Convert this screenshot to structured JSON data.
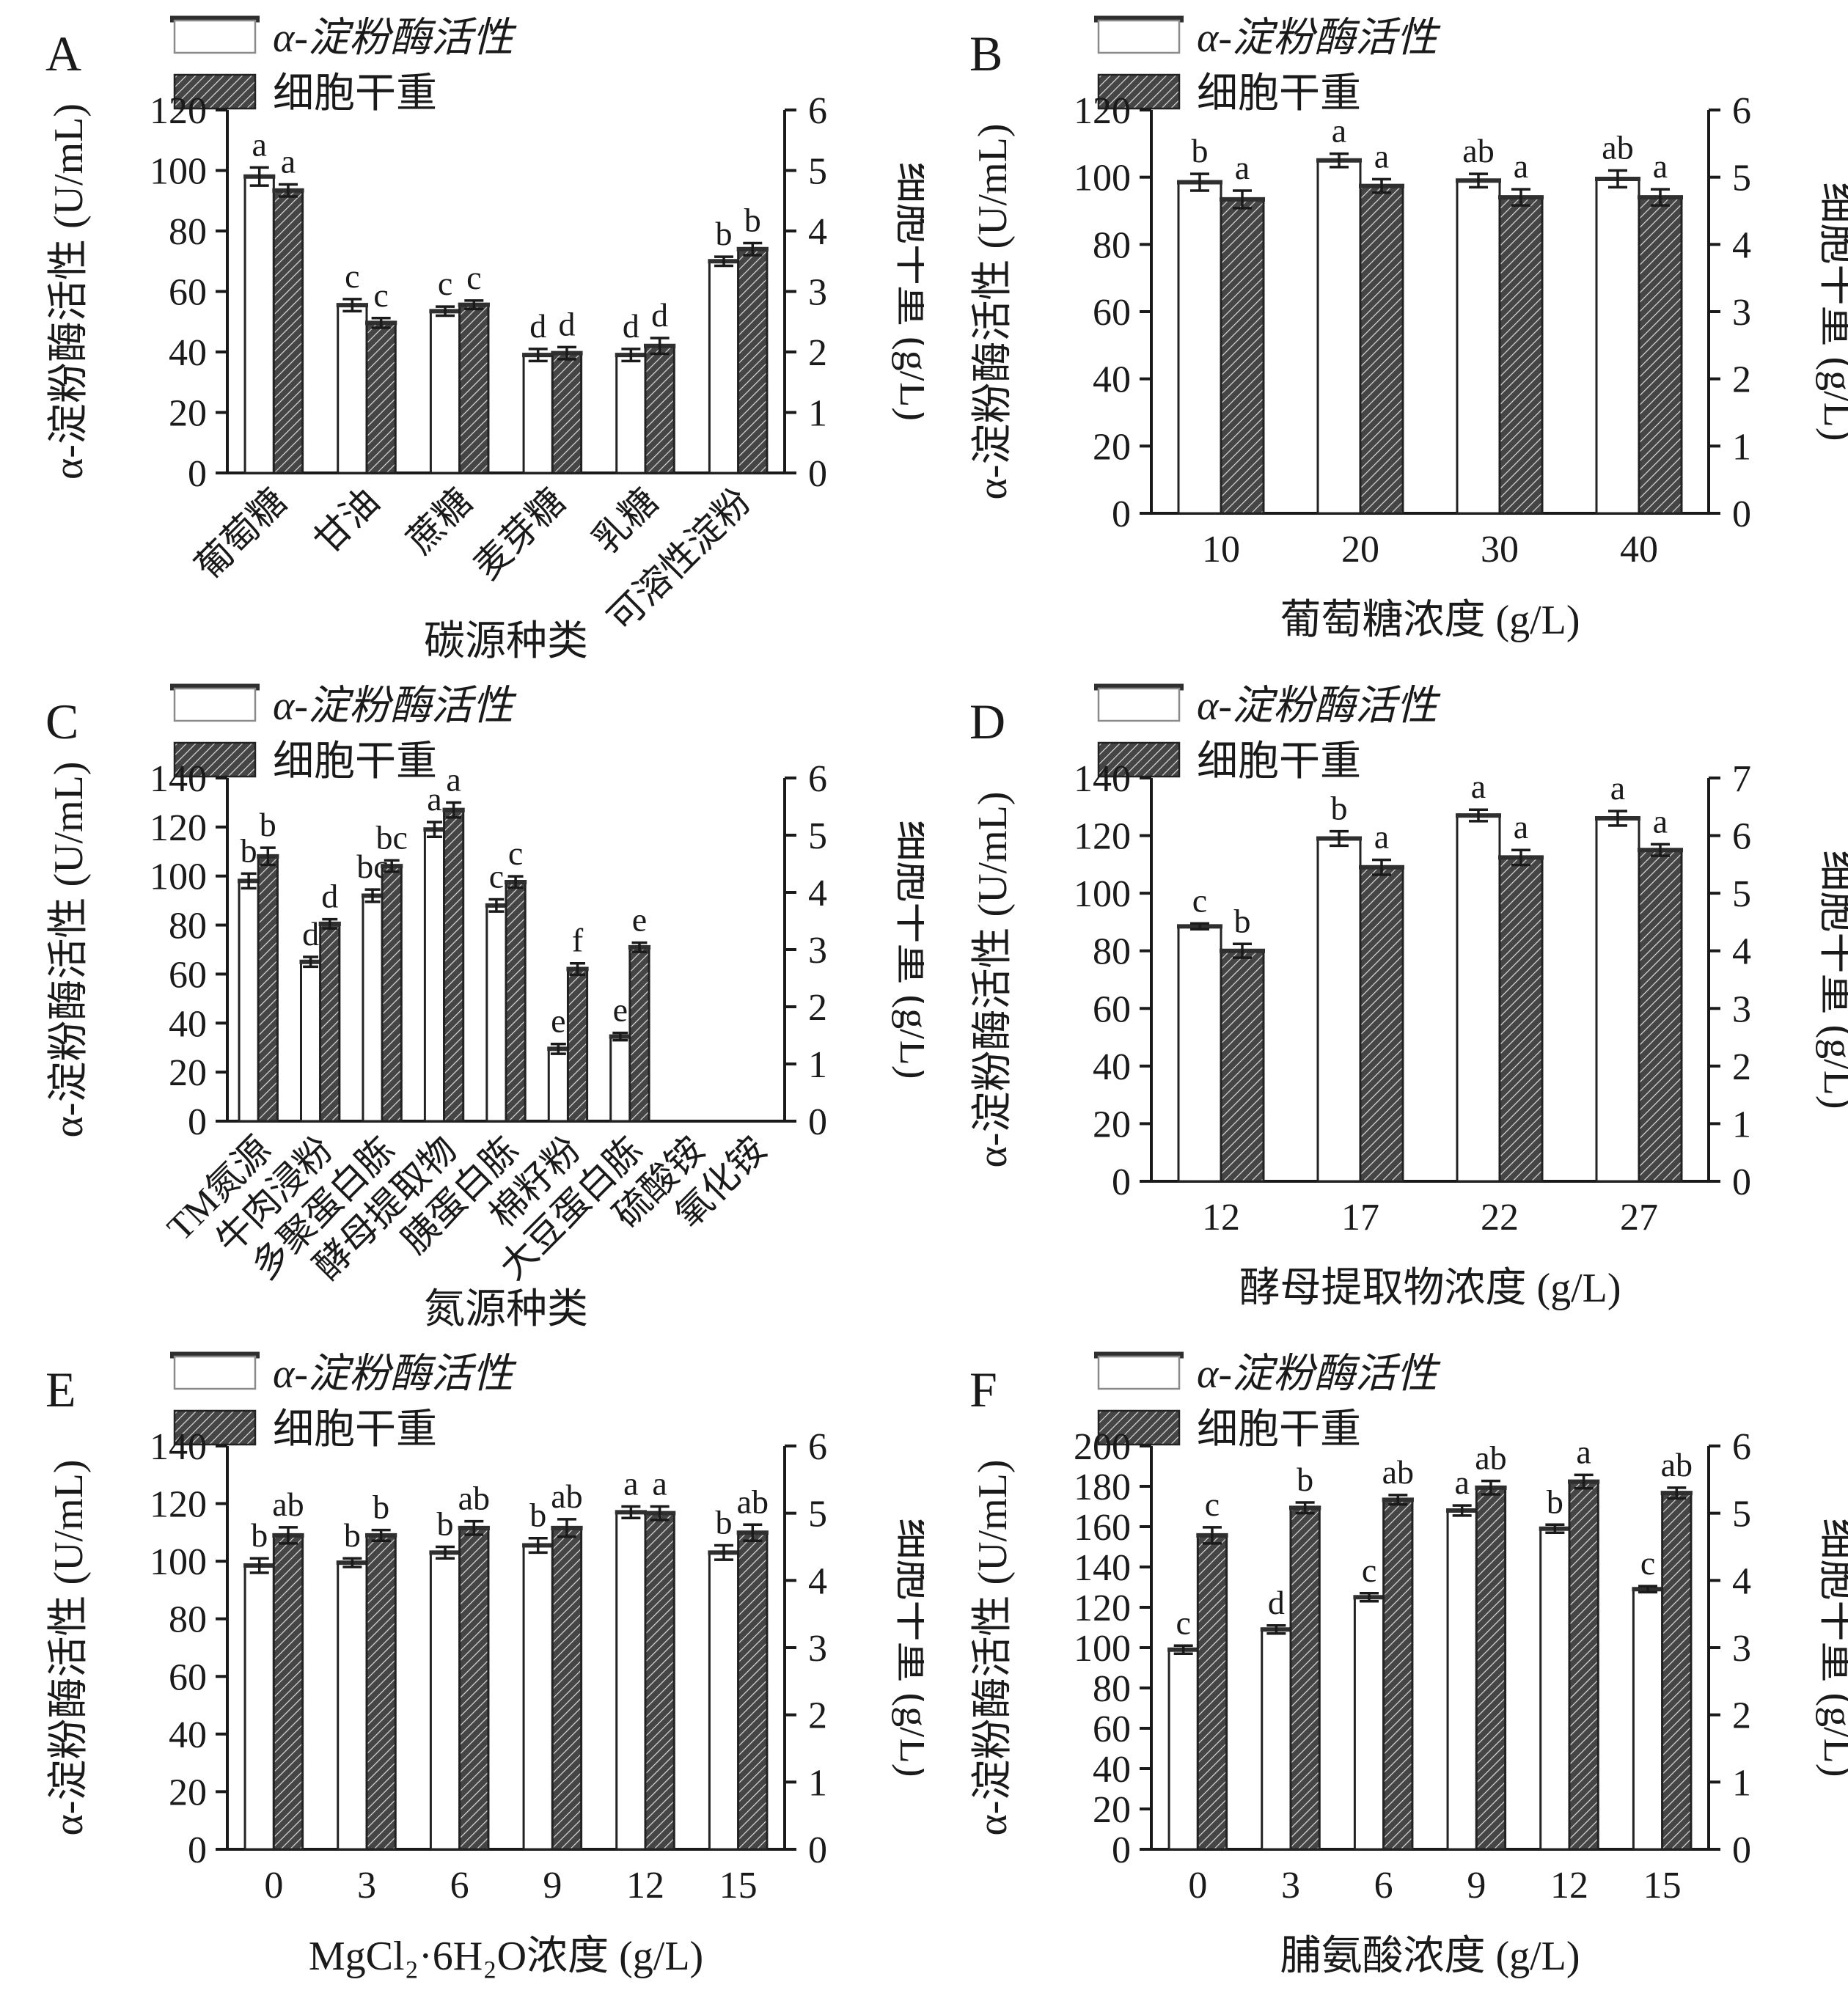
{
  "figure": {
    "legend": {
      "activity": "α-淀粉酶活性",
      "dry_weight": "细胞干重"
    },
    "colors": {
      "bar_fill": "#ffffff",
      "bar_stroke": "#222222",
      "bar_top": "#2f2f2f",
      "hatch_bg": "#454545",
      "hatch_line": "#dcdcdc",
      "axis": "#1a1a1a",
      "text": "#1a1a1a"
    }
  },
  "chart_data": [
    {
      "id": "A",
      "type": "bar",
      "left_axis": {
        "label": "α-淀粉酶活性 (U/mL)",
        "min": 0,
        "max": 120,
        "step": 20
      },
      "right_axis": {
        "label": "细胞干重 (g/L)",
        "min": 0,
        "max": 6,
        "step": 1
      },
      "x_axis": {
        "label": "碳源种类",
        "categories": [
          "葡萄糖",
          "甘油",
          "蔗糖",
          "麦芽糖",
          "乳糖",
          "可溶性淀粉"
        ],
        "rotated": true
      },
      "series": [
        {
          "name": "α-淀粉酶活性",
          "axis": "left",
          "values": [
            98,
            55.5,
            53.5,
            39,
            39,
            70
          ],
          "errors": [
            3,
            2,
            1.5,
            2,
            2,
            1.5
          ],
          "letters": [
            "a",
            "c",
            "c",
            "d",
            "d",
            "b"
          ]
        },
        {
          "name": "细胞干重",
          "axis": "right",
          "values": [
            4.67,
            2.48,
            2.78,
            1.98,
            2.1,
            3.7
          ],
          "errors": [
            0.1,
            0.08,
            0.07,
            0.1,
            0.13,
            0.1
          ],
          "letters": [
            "a",
            "c",
            "c",
            "d",
            "d",
            "b"
          ]
        }
      ]
    },
    {
      "id": "B",
      "type": "bar",
      "left_axis": {
        "label": "α-淀粉酶活性 (U/mL)",
        "min": 0,
        "max": 120,
        "step": 20
      },
      "right_axis": {
        "label": "细胞干重 (g/L)",
        "min": 0,
        "max": 6,
        "step": 1
      },
      "x_axis": {
        "label": "葡萄糖浓度 (g/L)",
        "categories": [
          "10",
          "20",
          "30",
          "40"
        ],
        "rotated": false
      },
      "series": [
        {
          "name": "α-淀粉酶活性",
          "axis": "left",
          "values": [
            98.5,
            105,
            99,
            99.5
          ],
          "errors": [
            2.5,
            2,
            2,
            2.5
          ],
          "letters": [
            "b",
            "a",
            "ab",
            "ab"
          ]
        },
        {
          "name": "细胞干重",
          "axis": "right",
          "values": [
            4.67,
            4.87,
            4.7,
            4.7
          ],
          "errors": [
            0.13,
            0.1,
            0.12,
            0.12
          ],
          "letters": [
            "a",
            "a",
            "a",
            "a"
          ]
        }
      ]
    },
    {
      "id": "C",
      "type": "bar",
      "left_axis": {
        "label": "α-淀粉酶活性 (U/mL)",
        "min": 0,
        "max": 140,
        "step": 20
      },
      "right_axis": {
        "label": "细胞干重 (g/L)",
        "min": 0,
        "max": 6,
        "step": 1
      },
      "x_axis": {
        "label": "氮源种类",
        "categories": [
          "TM氮源",
          "牛肉浸粉",
          "多聚蛋白胨",
          "酵母提取物",
          "胰蛋白胨",
          "棉籽粉",
          "大豆蛋白胨",
          "硫酸铵",
          "氧化铵"
        ],
        "rotated": true
      },
      "series": [
        {
          "name": "α-淀粉酶活性",
          "axis": "left",
          "values": [
            98,
            65,
            92,
            119,
            88,
            29.5,
            34.5,
            0,
            0
          ],
          "errors": [
            3,
            2,
            2.5,
            3,
            2.5,
            2,
            1.5,
            0,
            0
          ],
          "letters": [
            "b",
            "d",
            "bc",
            "a",
            "c",
            "e",
            "e",
            "",
            ""
          ]
        },
        {
          "name": "细胞干重",
          "axis": "right",
          "values": [
            4.63,
            3.45,
            4.46,
            5.44,
            4.18,
            2.66,
            3.04,
            0,
            0
          ],
          "errors": [
            0.15,
            0.08,
            0.1,
            0.13,
            0.1,
            0.1,
            0.08,
            0,
            0
          ],
          "letters": [
            "b",
            "d",
            "bc",
            "a",
            "c",
            "f",
            "e",
            "",
            ""
          ]
        }
      ]
    },
    {
      "id": "D",
      "type": "bar",
      "left_axis": {
        "label": "α-淀粉酶活性 (U/mL)",
        "min": 0,
        "max": 140,
        "step": 20
      },
      "right_axis": {
        "label": "细胞干重 (g/L)",
        "min": 0,
        "max": 7,
        "step": 1
      },
      "x_axis": {
        "label": "酵母提取物浓度 (g/L)",
        "categories": [
          "12",
          "17",
          "22",
          "27"
        ],
        "rotated": false
      },
      "series": [
        {
          "name": "α-淀粉酶活性",
          "axis": "left",
          "values": [
            88.5,
            119,
            127,
            126
          ],
          "errors": [
            1,
            2.5,
            2,
            2.5
          ],
          "letters": [
            "c",
            "b",
            "a",
            "a"
          ]
        },
        {
          "name": "细胞干重",
          "axis": "right",
          "values": [
            4.0,
            5.45,
            5.62,
            5.75
          ],
          "errors": [
            0.12,
            0.13,
            0.13,
            0.1
          ],
          "letters": [
            "b",
            "a",
            "a",
            "a"
          ]
        }
      ]
    },
    {
      "id": "E",
      "type": "bar",
      "left_axis": {
        "label": "α-淀粉酶活性 (U/mL)",
        "min": 0,
        "max": 140,
        "step": 20
      },
      "right_axis": {
        "label": "细胞干重 (g/L)",
        "min": 0,
        "max": 6,
        "step": 1
      },
      "x_axis": {
        "label": "MgCl₂·6H₂O浓度 (g/L)",
        "categories": [
          "0",
          "3",
          "6",
          "9",
          "12",
          "15"
        ],
        "rotated": false
      },
      "series": [
        {
          "name": "α-淀粉酶活性",
          "axis": "left",
          "values": [
            98.5,
            99.5,
            103,
            105.5,
            117,
            103
          ],
          "errors": [
            2.5,
            1.5,
            2,
            2.5,
            2,
            2.5
          ],
          "letters": [
            "b",
            "b",
            "b",
            "b",
            "a",
            "b"
          ]
        },
        {
          "name": "细胞干重",
          "axis": "right",
          "values": [
            4.67,
            4.67,
            4.78,
            4.78,
            5.0,
            4.71
          ],
          "errors": [
            0.12,
            0.08,
            0.1,
            0.13,
            0.1,
            0.12
          ],
          "letters": [
            "ab",
            "b",
            "ab",
            "ab",
            "a",
            "ab"
          ]
        }
      ]
    },
    {
      "id": "F",
      "type": "bar",
      "left_axis": {
        "label": "α-淀粉酶活性 (U/mL)",
        "min": 0,
        "max": 200,
        "step": 20
      },
      "right_axis": {
        "label": "细胞干重 (g/L)",
        "min": 0,
        "max": 6,
        "step": 1
      },
      "x_axis": {
        "label": "脯氨酸浓度 (g/L)",
        "categories": [
          "0",
          "3",
          "6",
          "9",
          "12",
          "15"
        ],
        "rotated": false
      },
      "series": [
        {
          "name": "α-淀粉酶活性",
          "axis": "left",
          "values": [
            99,
            109,
            125,
            168,
            159,
            129
          ],
          "errors": [
            2,
            2,
            2,
            2.5,
            2,
            1.5
          ],
          "letters": [
            "c",
            "d",
            "c",
            "a",
            "b",
            "c"
          ]
        },
        {
          "name": "细胞干重",
          "axis": "right",
          "values": [
            4.67,
            5.08,
            5.2,
            5.38,
            5.47,
            5.3
          ],
          "errors": [
            0.12,
            0.08,
            0.07,
            0.1,
            0.1,
            0.08
          ],
          "letters": [
            "c",
            "b",
            "ab",
            "ab",
            "a",
            "ab"
          ]
        }
      ]
    }
  ]
}
